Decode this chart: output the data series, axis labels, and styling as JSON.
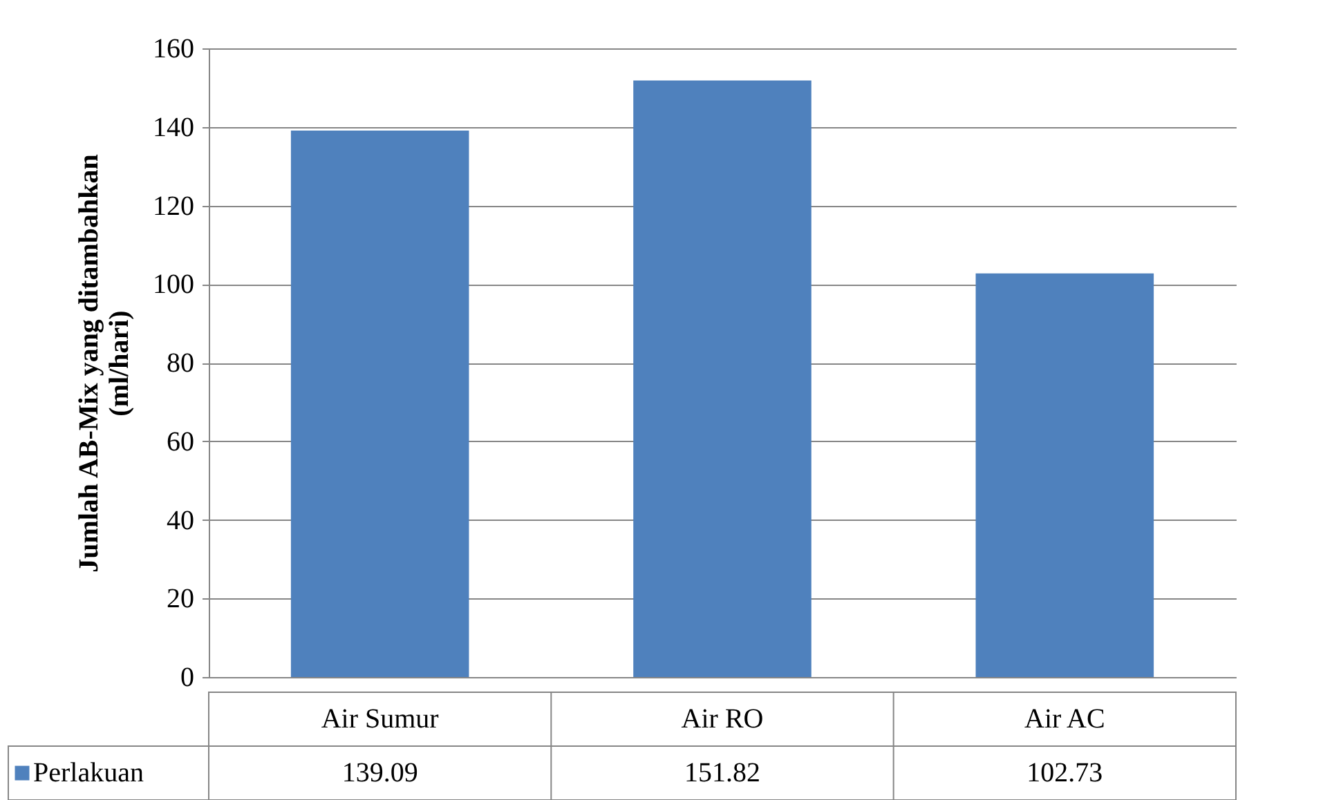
{
  "chart_data": {
    "type": "bar",
    "ylabel": "Jumlah AB-Mix yang ditambahkan (ml/hari)",
    "categories": [
      "Air Sumur",
      "Air RO",
      "Air AC"
    ],
    "series": [
      {
        "name": "Perlakuan",
        "color": "#4f81bd",
        "values": [
          139.09,
          151.82,
          102.73
        ]
      }
    ],
    "ylim": [
      0,
      160
    ],
    "yticks": [
      0,
      20,
      40,
      60,
      80,
      100,
      120,
      140,
      160
    ],
    "grid": "y",
    "data_labels": true,
    "legend": "bottom"
  }
}
